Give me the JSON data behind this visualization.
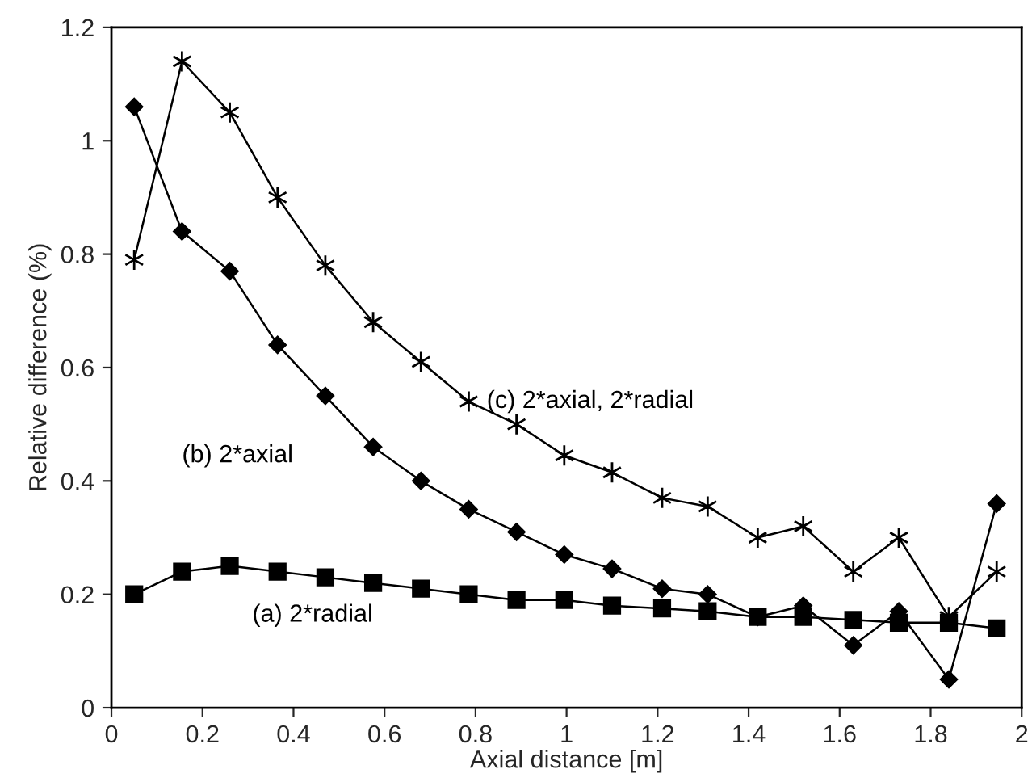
{
  "chart_data": {
    "type": "line",
    "xlabel": "Axial distance [m]",
    "ylabel": "Relative difference (%)",
    "x": [
      0.05,
      0.155,
      0.26,
      0.365,
      0.47,
      0.575,
      0.68,
      0.785,
      0.89,
      0.995,
      1.1,
      1.21,
      1.31,
      1.42,
      1.52,
      1.63,
      1.73,
      1.84,
      1.945
    ],
    "series": [
      {
        "name": "(a) 2*radial",
        "color": "#000000",
        "marker": "square",
        "values": [
          0.2,
          0.24,
          0.25,
          0.24,
          0.23,
          0.22,
          0.21,
          0.2,
          0.19,
          0.19,
          0.18,
          0.175,
          0.17,
          0.16,
          0.16,
          0.155,
          0.15,
          0.15,
          0.14
        ]
      },
      {
        "name": "(b) 2*axial",
        "color": "#000000",
        "marker": "diamond",
        "values": [
          1.06,
          0.84,
          0.77,
          0.64,
          0.55,
          0.46,
          0.4,
          0.35,
          0.31,
          0.27,
          0.245,
          0.21,
          0.2,
          0.16,
          0.18,
          0.11,
          0.17,
          0.05,
          0.36
        ]
      },
      {
        "name": "(c) 2*axial, 2*radial",
        "color": "#000000",
        "marker": "cross",
        "values": [
          0.79,
          1.14,
          1.05,
          0.9,
          0.78,
          0.68,
          0.61,
          0.54,
          0.5,
          0.445,
          0.415,
          0.37,
          0.355,
          0.3,
          0.32,
          0.24,
          0.3,
          0.16,
          0.24
        ]
      }
    ],
    "xlim": [
      0,
      2
    ],
    "xticks": [
      0,
      0.2,
      0.4,
      0.6,
      0.8,
      1,
      1.2,
      1.4,
      1.6,
      1.8,
      2
    ],
    "ylim": [
      0,
      1.2
    ],
    "yticks": [
      0,
      0.2,
      0.4,
      0.6,
      0.8,
      1,
      1.2
    ],
    "grid": false,
    "legend": false,
    "line_style": "solid"
  }
}
